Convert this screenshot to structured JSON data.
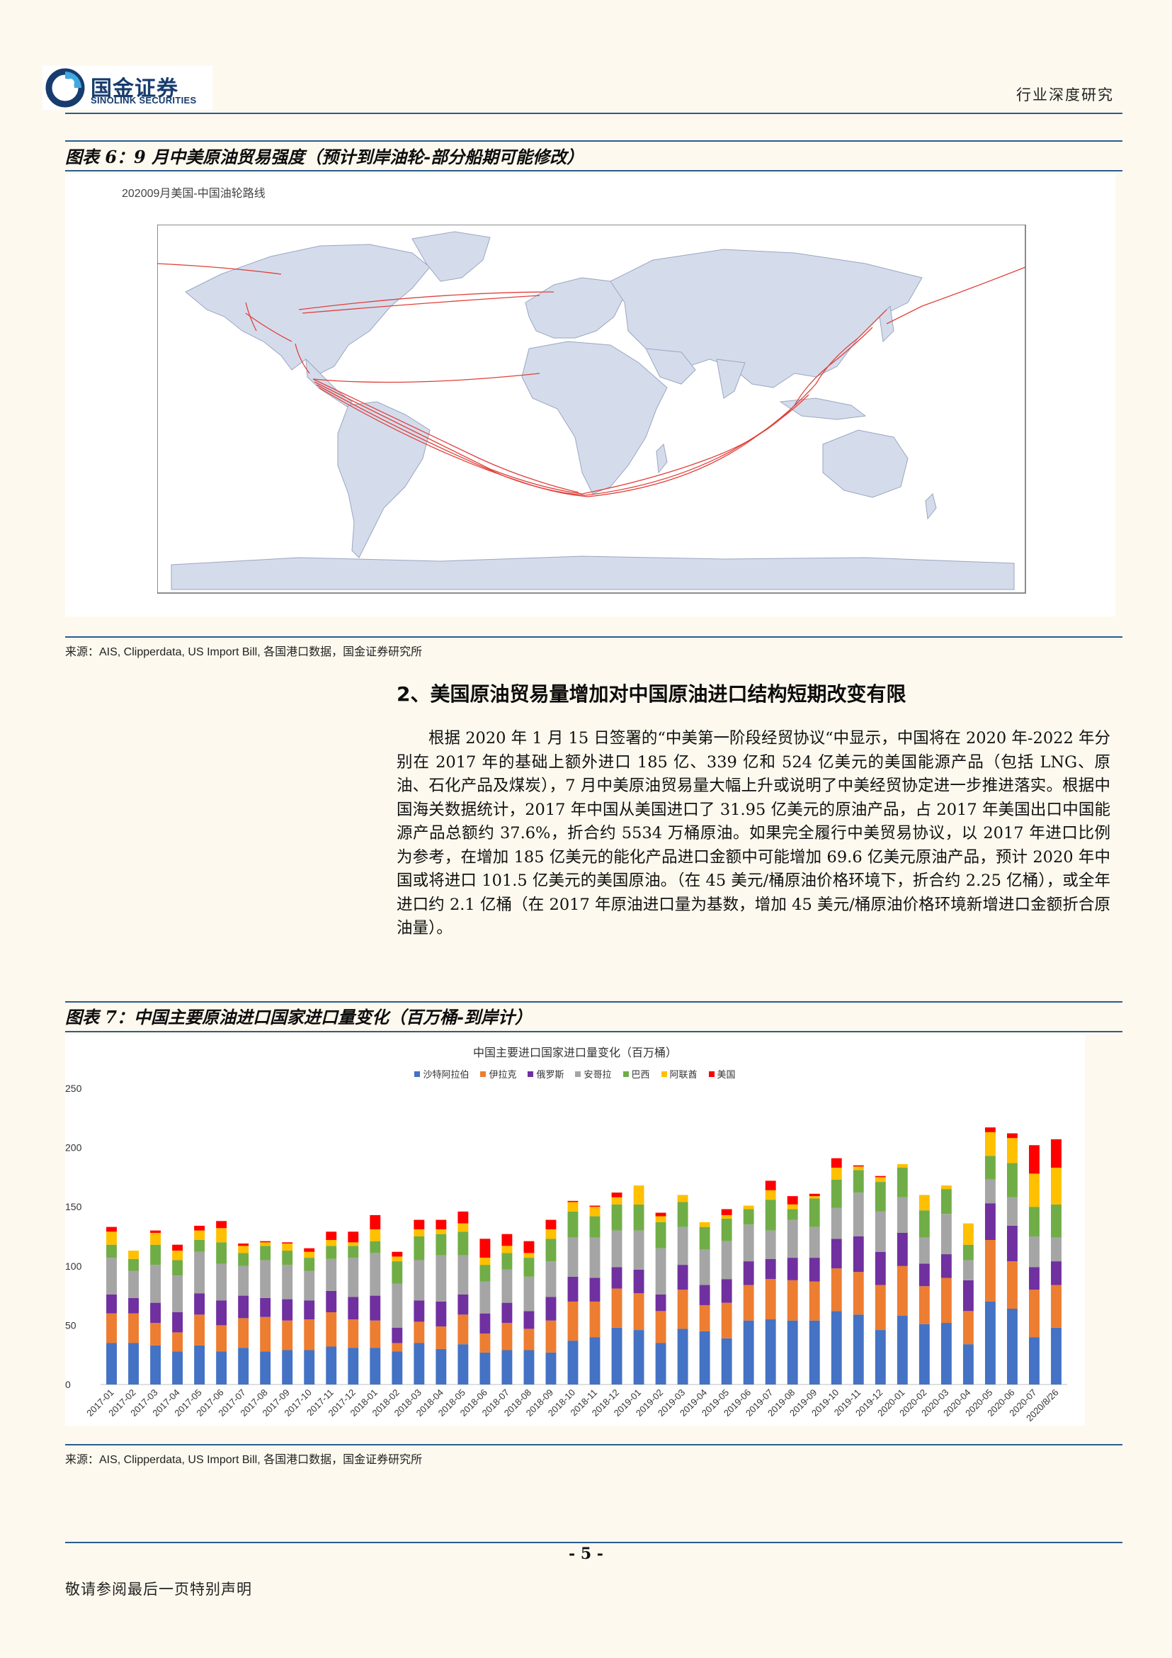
{
  "header": {
    "logo_cn": "国金证券",
    "logo_en": "SINOLINK SECURITIES",
    "report_type": "行业深度研究",
    "brand_color": "#173C6E",
    "accent_color": "#2A5C8F"
  },
  "figure6": {
    "title": "图表 6：9 月中美原油贸易强度（预计到岸油轮-部分船期可能修改）",
    "map_title": "202009月美国-中国油轮路线",
    "source": "来源：AIS, Clipperdata, US Import Bill, 各国港口数据，国金证券研究所",
    "route_color": "#E0403A",
    "land_color": "#D4DCEC"
  },
  "section2": {
    "heading": "2、美国原油贸易量增加对中国原油进口结构短期改变有限",
    "paragraph": "根据 2020 年 1 月 15 日签署的“中美第一阶段经贸协议“中显示，中国将在 2020 年-2022 年分别在 2017 年的基础上额外进口 185 亿、339 亿和 524 亿美元的美国能源产品（包括 LNG、原油、石化产品及煤炭），7 月中美原油贸易量大幅上升或说明了中美经贸协定进一步推进落实。根据中国海关数据统计，2017 年中国从美国进口了 31.95 亿美元的原油产品，占 2017 年美国出口中国能源产品总额约 37.6%，折合约 5534 万桶原油。如果完全履行中美贸易协议，以 2017 年进口比例为参考，在增加 185 亿美元的能化产品进口金额中可能增加 69.6 亿美元原油产品，预计 2020 年中国或将进口 101.5 亿美元的美国原油。（在 45 美元/桶原油价格环境下，折合约 2.25 亿桶），或全年进口约 2.1 亿桶（在 2017 年原油进口量为基数，增加 45 美元/桶原油价格环境新增进口金额折合原油量）。"
  },
  "figure7": {
    "title": "图表 7：中国主要原油进口国家进口量变化（百万桶-到岸计）",
    "source": "来源：AIS, Clipperdata, US Import Bill, 各国港口数据，国金证券研究所"
  },
  "chart_data": {
    "type": "bar",
    "stacked": true,
    "title": "中国主要进口国家进口量变化（百万桶）",
    "ylim": [
      0,
      250
    ],
    "yticks": [
      0,
      50,
      100,
      150,
      200,
      250
    ],
    "legend_position": "top",
    "grid": false,
    "categories": [
      "2017-01",
      "2017-02",
      "2017-03",
      "2017-04",
      "2017-05",
      "2017-06",
      "2017-07",
      "2017-08",
      "2017-09",
      "2017-10",
      "2017-11",
      "2017-12",
      "2018-01",
      "2018-02",
      "2018-03",
      "2018-04",
      "2018-05",
      "2018-06",
      "2018-07",
      "2018-08",
      "2018-09",
      "2018-10",
      "2018-11",
      "2018-12",
      "2019-01",
      "2019-02",
      "2019-03",
      "2019-04",
      "2019-05",
      "2019-06",
      "2019-07",
      "2019-08",
      "2019-09",
      "2019-10",
      "2019-11",
      "2019-12",
      "2020-01",
      "2020-02",
      "2020-03",
      "2020-04",
      "2020-05",
      "2020-06",
      "2020-07",
      "2020/8/26"
    ],
    "tick_labels": [
      "2017-01",
      "2017-02",
      "2017-03",
      "2017-04",
      "2017-05",
      "2017-06",
      "2017-07",
      "2017-08",
      "2017-09",
      "2017-10",
      "2017-11",
      "2017-12",
      "2018-01",
      "2018-02",
      "2018-03",
      "2018-04",
      "2018-05",
      "2018-06",
      "2018-07",
      "2018-08",
      "2018-09",
      "2018-10",
      "2018-11",
      "2018-12",
      "2019-01",
      "2019-02",
      "2019-03",
      "2019-04",
      "2019-05",
      "2019-06",
      "2019-07",
      "2019-08",
      "2019-09",
      "2019-10",
      "2019-11",
      "2019-12",
      "2020-01",
      "2020-02",
      "2020-03",
      "2020-04",
      "2020-05",
      "2020-06",
      "2020-07",
      "2020/8/26"
    ],
    "series": [
      {
        "name": "沙特阿拉伯",
        "color": "#4472C4",
        "values": [
          35,
          35,
          33,
          28,
          33,
          28,
          31,
          28,
          29,
          29,
          32,
          31,
          31,
          28,
          35,
          30,
          34,
          27,
          29,
          29,
          27,
          37,
          40,
          48,
          46,
          35,
          47,
          45,
          39,
          54,
          55,
          54,
          54,
          62,
          59,
          46,
          58,
          51,
          52,
          34,
          70,
          64,
          40,
          48
        ]
      },
      {
        "name": "伊拉克",
        "color": "#ED7D31",
        "values": [
          25,
          25,
          19,
          16,
          26,
          22,
          25,
          29,
          25,
          26,
          29,
          24,
          23,
          7,
          18,
          19,
          25,
          16,
          23,
          18,
          27,
          33,
          30,
          33,
          31,
          27,
          33,
          22,
          30,
          30,
          34,
          34,
          33,
          36,
          36,
          38,
          42,
          32,
          38,
          28,
          52,
          40,
          40,
          36
        ]
      },
      {
        "name": "俄罗斯",
        "color": "#7030A0",
        "values": [
          16,
          13,
          17,
          17,
          18,
          21,
          19,
          16,
          18,
          16,
          18,
          19,
          21,
          13,
          18,
          21,
          17,
          17,
          17,
          15,
          20,
          21,
          20,
          18,
          20,
          14,
          21,
          17,
          20,
          20,
          17,
          19,
          20,
          25,
          30,
          28,
          28,
          19,
          20,
          26,
          31,
          30,
          19,
          20
        ]
      },
      {
        "name": "安哥拉",
        "color": "#A5A5A5",
        "values": [
          31,
          23,
          32,
          31,
          35,
          31,
          25,
          32,
          29,
          25,
          27,
          33,
          36,
          37,
          34,
          39,
          33,
          27,
          28,
          29,
          30,
          33,
          34,
          31,
          33,
          39,
          32,
          30,
          32,
          31,
          24,
          32,
          26,
          26,
          37,
          34,
          30,
          22,
          34,
          17,
          20,
          24,
          26,
          20
        ]
      },
      {
        "name": "巴西",
        "color": "#70AD47",
        "values": [
          11,
          10,
          17,
          13,
          10,
          18,
          11,
          12,
          12,
          11,
          11,
          10,
          10,
          19,
          20,
          18,
          20,
          14,
          14,
          16,
          19,
          22,
          18,
          22,
          22,
          22,
          21,
          19,
          19,
          13,
          26,
          9,
          24,
          24,
          19,
          25,
          25,
          23,
          21,
          13,
          20,
          29,
          25,
          28
        ]
      },
      {
        "name": "阿联酋",
        "color": "#FFC000",
        "values": [
          11,
          7,
          10,
          8,
          8,
          12,
          6,
          3,
          6,
          5,
          5,
          3,
          10,
          4,
          6,
          4,
          7,
          6,
          6,
          4,
          8,
          8,
          8,
          6,
          16,
          5,
          6,
          4,
          3,
          3,
          8,
          4,
          2,
          10,
          3,
          4,
          3,
          13,
          3,
          18,
          20,
          21,
          28,
          31
        ]
      },
      {
        "name": "美国",
        "color": "#FF0000",
        "values": [
          4,
          0,
          2,
          5,
          4,
          6,
          2,
          1,
          1,
          3,
          7,
          9,
          12,
          4,
          8,
          8,
          10,
          16,
          10,
          10,
          8,
          1,
          1,
          4,
          0,
          3,
          0,
          0,
          5,
          0,
          8,
          7,
          2,
          8,
          1,
          1,
          0,
          0,
          0,
          0,
          4,
          4,
          24,
          24
        ]
      }
    ]
  },
  "footer": {
    "page_number": "- 5 -",
    "disclaimer": "敬请参阅最后一页特别声明"
  }
}
